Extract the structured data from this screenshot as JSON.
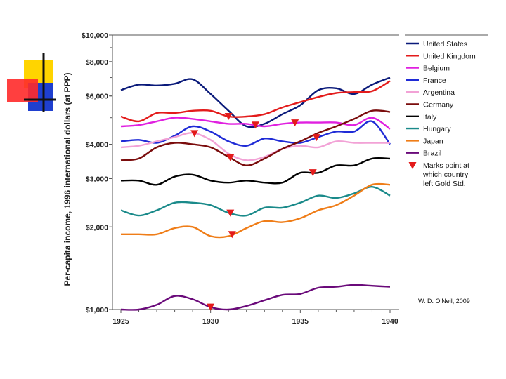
{
  "chart_data": {
    "type": "line",
    "title": "",
    "xlabel": "",
    "ylabel": "Per-capita income, 1996 international dollars (at PPP)",
    "yscale": "log",
    "ylim": [
      1000,
      10000
    ],
    "xlim": [
      1925,
      1940
    ],
    "x_ticks": [
      {
        "value": 1925,
        "label": "1925"
      },
      {
        "value": 1930,
        "label": "1930"
      },
      {
        "value": 1935,
        "label": "1935"
      },
      {
        "value": 1940,
        "label": "1940"
      }
    ],
    "y_ticks": [
      {
        "value": 1000,
        "label": "$1,000"
      },
      {
        "value": 2000,
        "label": "$2,000"
      },
      {
        "value": 3000,
        "label": "$3,000"
      },
      {
        "value": 4000,
        "label": "$4,000"
      },
      {
        "value": 6000,
        "label": "$6,000"
      },
      {
        "value": 8000,
        "label": "$8,000"
      },
      {
        "value": 10000,
        "label": "$10,000"
      }
    ],
    "series": [
      {
        "name": "United States",
        "color": "#0a1a7a",
        "x": [
          1925,
          1926,
          1927,
          1928,
          1929,
          1930,
          1931,
          1932,
          1933,
          1934,
          1935,
          1936,
          1937,
          1938,
          1939,
          1940
        ],
        "values": [
          6300,
          6600,
          6550,
          6650,
          6900,
          6100,
          5300,
          4650,
          4750,
          5150,
          5550,
          6300,
          6400,
          6100,
          6600,
          7000
        ],
        "gold_exit": 1933
      },
      {
        "name": "United Kingdom",
        "color": "#e31b1b",
        "x": [
          1925,
          1926,
          1927,
          1928,
          1929,
          1930,
          1931,
          1932,
          1933,
          1934,
          1935,
          1936,
          1937,
          1938,
          1939,
          1940
        ],
        "values": [
          5050,
          4850,
          5200,
          5200,
          5300,
          5300,
          5050,
          5050,
          5150,
          5450,
          5700,
          5950,
          6150,
          6200,
          6250,
          6800
        ],
        "gold_exit": 1931
      },
      {
        "name": "Belgium",
        "color": "#e020e0",
        "x": [
          1925,
          1926,
          1927,
          1928,
          1929,
          1930,
          1931,
          1932,
          1933,
          1934,
          1935,
          1936,
          1937,
          1938,
          1939,
          1940
        ],
        "values": [
          4650,
          4700,
          4850,
          5000,
          4950,
          4850,
          4750,
          4750,
          4650,
          4750,
          4800,
          4800,
          4800,
          4700,
          5000,
          4550
        ],
        "gold_exit": 1935
      },
      {
        "name": "France",
        "color": "#1f2bd6",
        "x": [
          1925,
          1926,
          1927,
          1928,
          1929,
          1930,
          1931,
          1932,
          1933,
          1934,
          1935,
          1936,
          1937,
          1938,
          1939,
          1940
        ],
        "values": [
          4100,
          4150,
          4050,
          4300,
          4650,
          4450,
          4100,
          3950,
          4200,
          4100,
          4050,
          4250,
          4450,
          4450,
          4850,
          4000
        ],
        "gold_exit": 1936
      },
      {
        "name": "Argentina",
        "color": "#f2a2d6",
        "x": [
          1925,
          1926,
          1927,
          1928,
          1929,
          1930,
          1931,
          1932,
          1933,
          1934,
          1935,
          1936,
          1937,
          1938,
          1939,
          1940
        ],
        "values": [
          3900,
          3950,
          4100,
          4250,
          4400,
          4150,
          3700,
          3500,
          3600,
          3850,
          3950,
          3900,
          4100,
          4050,
          4050,
          4050
        ],
        "gold_exit": 1929
      },
      {
        "name": "Germany",
        "color": "#7a0c0c",
        "x": [
          1925,
          1926,
          1927,
          1928,
          1929,
          1930,
          1931,
          1932,
          1933,
          1934,
          1935,
          1936,
          1937,
          1938,
          1939,
          1940
        ],
        "values": [
          3500,
          3550,
          3900,
          4050,
          4000,
          3900,
          3600,
          3350,
          3550,
          3850,
          4100,
          4400,
          4650,
          4950,
          5300,
          5250
        ],
        "gold_exit": 1931
      },
      {
        "name": "Italy",
        "color": "#000000",
        "x": [
          1925,
          1926,
          1927,
          1928,
          1929,
          1930,
          1931,
          1932,
          1933,
          1934,
          1935,
          1936,
          1937,
          1938,
          1939,
          1940
        ],
        "values": [
          2950,
          2950,
          2850,
          3050,
          3100,
          2950,
          2900,
          2950,
          2900,
          2900,
          3150,
          3150,
          3350,
          3350,
          3550,
          3550
        ],
        "gold_exit": 1936
      },
      {
        "name": "Hungary",
        "color": "#1a8a8a",
        "x": [
          1925,
          1926,
          1927,
          1928,
          1929,
          1930,
          1931,
          1932,
          1933,
          1934,
          1935,
          1936,
          1937,
          1938,
          1939,
          1940
        ],
        "values": [
          2300,
          2200,
          2300,
          2450,
          2450,
          2400,
          2250,
          2200,
          2350,
          2350,
          2450,
          2600,
          2550,
          2650,
          2800,
          2600
        ],
        "gold_exit": 1931
      },
      {
        "name": "Japan",
        "color": "#ef7d18",
        "x": [
          1925,
          1926,
          1927,
          1928,
          1929,
          1930,
          1931,
          1932,
          1933,
          1934,
          1935,
          1936,
          1937,
          1938,
          1939,
          1940
        ],
        "values": [
          1880,
          1880,
          1880,
          1980,
          2000,
          1850,
          1850,
          1980,
          2100,
          2080,
          2150,
          2300,
          2400,
          2600,
          2850,
          2850
        ],
        "gold_exit": 1931
      },
      {
        "name": "Brazil",
        "color": "#6a0a7a",
        "x": [
          1925,
          1926,
          1927,
          1928,
          1929,
          1930,
          1931,
          1932,
          1933,
          1934,
          1935,
          1936,
          1937,
          1938,
          1939,
          1940
        ],
        "values": [
          1000,
          1000,
          1040,
          1120,
          1090,
          1020,
          1000,
          1030,
          1080,
          1130,
          1140,
          1200,
          1210,
          1230,
          1220,
          1210
        ],
        "gold_exit": 1930
      }
    ],
    "gold_marks": [
      {
        "series": "Argentina",
        "x": 1929.1
      },
      {
        "series": "Brazil",
        "x": 1930.0
      },
      {
        "series": "United Kingdom",
        "x": 1931.0
      },
      {
        "series": "Germany",
        "x": 1931.1
      },
      {
        "series": "Hungary",
        "x": 1931.1
      },
      {
        "series": "Japan",
        "x": 1931.2
      },
      {
        "series": "United States",
        "x": 1932.5
      },
      {
        "series": "Belgium",
        "x": 1934.7
      },
      {
        "series": "Italy",
        "x": 1935.7
      },
      {
        "series": "France",
        "x": 1935.9
      }
    ],
    "legend_marker_label": "Marks point at which country left Gold Std.",
    "legend_marker_lines": [
      "Marks point at",
      "which country",
      "left Gold Std."
    ],
    "legend_placement": "right",
    "credit": "W. D. O'Neil, 2009",
    "marker_color": "#e31b1b"
  }
}
